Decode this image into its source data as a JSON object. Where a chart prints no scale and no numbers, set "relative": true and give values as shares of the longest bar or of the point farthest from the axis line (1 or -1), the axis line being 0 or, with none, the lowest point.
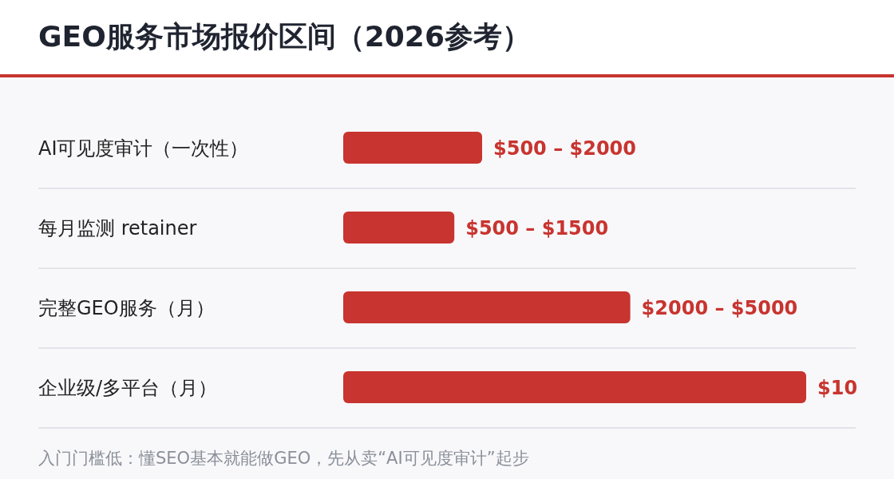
{
  "chart_data": {
    "type": "bar",
    "orientation": "horizontal",
    "relative": true,
    "title": "GEO服务市场报价区间（2026参考）",
    "categories": [
      "AI可见度审计（一次性）",
      "每月监测 retainer",
      "完整GEO服务（月）",
      "企业级/多平台（月）"
    ],
    "values": [
      0.3,
      0.24,
      0.62,
      1
    ],
    "color": "#c8342f",
    "annotations": [
      {
        "text": "$500 – $2000",
        "x": 0.3,
        "y": "AI可见度审计（一次性）"
      },
      {
        "text": "$500 – $1500",
        "x": 0.24,
        "y": "每月监测 retainer"
      },
      {
        "text": "$2000 – $5000",
        "x": 0.62,
        "y": "完整GEO服务（月）"
      },
      {
        "text": "$10",
        "x": 1,
        "y": "企业级/多平台（月）"
      },
      "入门门槛低：懂SEO基本就能做GEO，先从卖“AI可见度审计”起步"
    ]
  }
}
